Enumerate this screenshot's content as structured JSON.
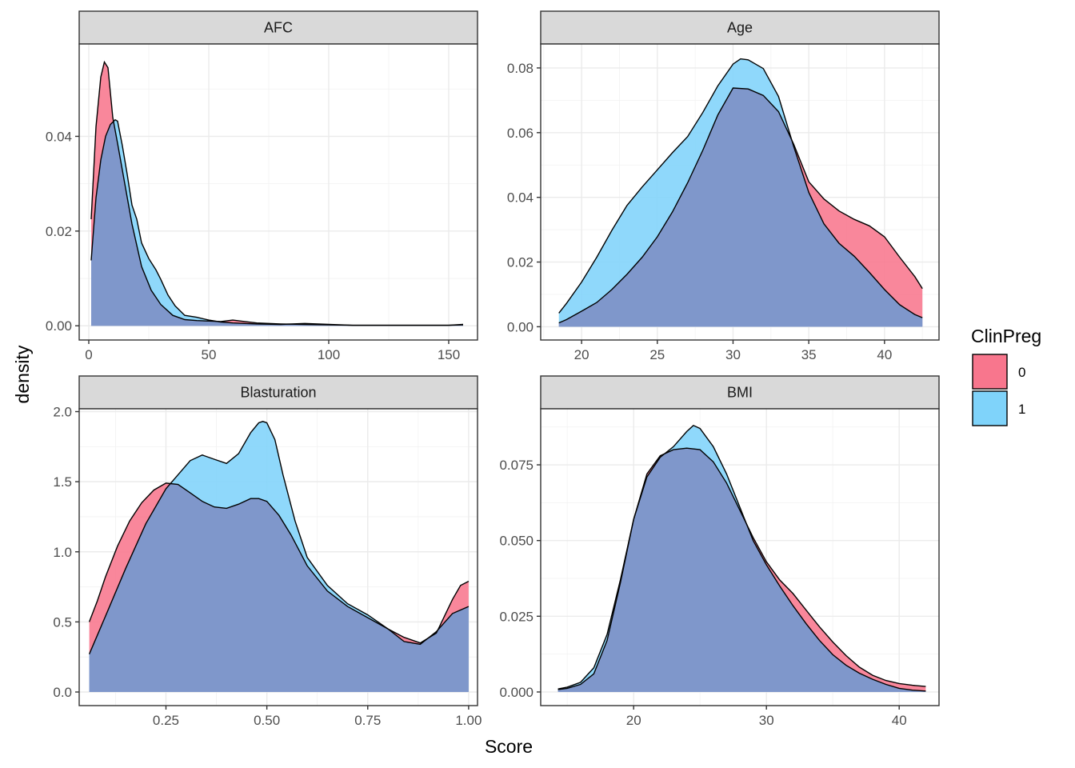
{
  "chart_data": {
    "type": "area",
    "subtype": "faceted-density",
    "xlabel": "Score",
    "ylabel": "density",
    "legend": {
      "title": "ClinPreg",
      "placement": "right",
      "entries": [
        {
          "label": "0",
          "color": "#F8768D"
        },
        {
          "label": "1",
          "color": "#7FD3FA"
        }
      ]
    },
    "overlap_color": "#7F97CB",
    "grid": true,
    "panels": [
      {
        "title": "AFC",
        "xlim": [
          -4,
          162
        ],
        "ylim": [
          -0.003,
          0.0595
        ],
        "xticks": [
          0,
          50,
          100,
          150
        ],
        "xtick_labels": [
          "0",
          "50",
          "100",
          "150"
        ],
        "yticks": [
          0,
          0.02,
          0.04
        ],
        "ytick_labels": [
          "0.00",
          "0.02",
          "0.04"
        ],
        "series": [
          {
            "name": "0",
            "x": [
              1,
              3,
              5,
              6.5,
              8,
              10,
              12,
              15,
              18,
              22,
              26,
              30,
              35,
              40,
              45,
              50,
              55,
              60,
              65,
              70,
              80,
              90,
              100,
              110,
              130,
              150,
              156
            ],
            "y": [
              0.0225,
              0.042,
              0.0525,
              0.0557,
              0.0545,
              0.044,
              0.0385,
              0.03,
              0.0215,
              0.0125,
              0.0075,
              0.0045,
              0.0022,
              0.0013,
              0.0011,
              0.001,
              0.0009,
              0.0012,
              0.0009,
              0.0006,
              0.0004,
              0.0003,
              0.0002,
              0.0001,
              0.0001,
              0.0001,
              0.0002
            ]
          },
          {
            "name": "1",
            "x": [
              1,
              3,
              5,
              7,
              9,
              11,
              12,
              14,
              16,
              18,
              20,
              22,
              25,
              28,
              30,
              33,
              36,
              40,
              45,
              50,
              55,
              60,
              70,
              80,
              90,
              100,
              110,
              130,
              150,
              156
            ],
            "y": [
              0.0138,
              0.027,
              0.035,
              0.04,
              0.0425,
              0.0435,
              0.0432,
              0.038,
              0.032,
              0.0255,
              0.0225,
              0.0175,
              0.0142,
              0.0118,
              0.0098,
              0.0065,
              0.0042,
              0.0022,
              0.0018,
              0.0012,
              0.0008,
              0.0006,
              0.0004,
              0.0003,
              0.0005,
              0.0003,
              0.0001,
              0.0001,
              0.0001,
              0.0003
            ]
          }
        ]
      },
      {
        "title": "Age",
        "xlim": [
          17.3,
          43.6
        ],
        "ylim": [
          -0.0041,
          0.0874
        ],
        "xticks": [
          20,
          25,
          30,
          35,
          40
        ],
        "xtick_labels": [
          "20",
          "25",
          "30",
          "35",
          "40"
        ],
        "yticks": [
          0,
          0.02,
          0.04,
          0.06,
          0.08
        ],
        "ytick_labels": [
          "0.00",
          "0.02",
          "0.04",
          "0.06",
          "0.08"
        ],
        "series": [
          {
            "name": "0",
            "x": [
              18.5,
              19,
              20,
              21,
              22,
              23,
              24,
              25,
              26,
              27,
              28,
              29,
              30,
              31,
              32,
              33,
              34,
              35,
              36,
              37,
              38,
              39,
              40,
              41,
              42,
              42.5
            ],
            "y": [
              0.0012,
              0.0022,
              0.0048,
              0.0075,
              0.0115,
              0.0162,
              0.0215,
              0.0278,
              0.0355,
              0.0445,
              0.0545,
              0.0655,
              0.0738,
              0.0735,
              0.0715,
              0.0665,
              0.0565,
              0.0448,
              0.0395,
              0.0358,
              0.0332,
              0.0312,
              0.0278,
              0.0215,
              0.0155,
              0.0118
            ]
          },
          {
            "name": "1",
            "x": [
              18.5,
              19,
              20,
              21,
              22,
              23,
              24,
              25,
              26,
              27,
              28,
              29,
              30,
              30.5,
              31,
              32,
              33,
              34,
              35,
              36,
              37,
              38,
              39,
              40,
              41,
              42,
              42.5
            ],
            "y": [
              0.0042,
              0.0072,
              0.0138,
              0.0215,
              0.0298,
              0.0375,
              0.0432,
              0.0485,
              0.0538,
              0.0588,
              0.0662,
              0.0745,
              0.0812,
              0.0828,
              0.0825,
              0.0798,
              0.0712,
              0.0558,
              0.0415,
              0.0318,
              0.0258,
              0.0218,
              0.0168,
              0.0115,
              0.0068,
              0.0038,
              0.0028
            ]
          }
        ]
      },
      {
        "title": "Blasturation",
        "xlim": [
          0.035,
          1.022
        ],
        "ylim": [
          -0.097,
          2.02
        ],
        "xticks": [
          0.25,
          0.5,
          0.75,
          1.0
        ],
        "xtick_labels": [
          "0.25",
          "0.50",
          "0.75",
          "1.00"
        ],
        "yticks": [
          0,
          0.5,
          1.0,
          1.5,
          2.0
        ],
        "ytick_labels": [
          "0.0",
          "0.5",
          "1.0",
          "1.5",
          "2.0"
        ],
        "series": [
          {
            "name": "0",
            "x": [
              0.06,
              0.08,
              0.1,
              0.13,
              0.16,
              0.19,
              0.22,
              0.25,
              0.28,
              0.31,
              0.34,
              0.37,
              0.4,
              0.43,
              0.46,
              0.48,
              0.5,
              0.53,
              0.56,
              0.6,
              0.65,
              0.7,
              0.75,
              0.8,
              0.84,
              0.88,
              0.92,
              0.96,
              0.98,
              1.0
            ],
            "y": [
              0.5,
              0.65,
              0.82,
              1.04,
              1.22,
              1.35,
              1.44,
              1.49,
              1.48,
              1.42,
              1.36,
              1.32,
              1.31,
              1.34,
              1.38,
              1.38,
              1.36,
              1.26,
              1.12,
              0.9,
              0.72,
              0.61,
              0.53,
              0.45,
              0.39,
              0.35,
              0.42,
              0.66,
              0.76,
              0.79
            ]
          },
          {
            "name": "1",
            "x": [
              0.06,
              0.1,
              0.15,
              0.2,
              0.25,
              0.28,
              0.31,
              0.34,
              0.37,
              0.4,
              0.43,
              0.46,
              0.48,
              0.49,
              0.5,
              0.52,
              0.54,
              0.57,
              0.6,
              0.65,
              0.7,
              0.75,
              0.8,
              0.84,
              0.88,
              0.92,
              0.96,
              1.0
            ],
            "y": [
              0.27,
              0.54,
              0.88,
              1.2,
              1.45,
              1.55,
              1.65,
              1.69,
              1.66,
              1.63,
              1.7,
              1.85,
              1.92,
              1.93,
              1.92,
              1.8,
              1.55,
              1.22,
              0.96,
              0.76,
              0.63,
              0.55,
              0.45,
              0.36,
              0.34,
              0.43,
              0.56,
              0.61
            ]
          }
        ]
      },
      {
        "title": "BMI",
        "xlim": [
          13.0,
          43.0
        ],
        "ylim": [
          -0.0045,
          0.0935
        ],
        "xticks": [
          20,
          30,
          40
        ],
        "xtick_labels": [
          "20",
          "30",
          "40"
        ],
        "yticks": [
          0,
          0.025,
          0.05,
          0.075
        ],
        "ytick_labels": [
          "0.000",
          "0.025",
          "0.050",
          "0.075"
        ],
        "series": [
          {
            "name": "0",
            "x": [
              14.3,
              15,
              16,
              17,
              18,
              19,
              20,
              21,
              22,
              23,
              24,
              25,
              26,
              27,
              28,
              29,
              30,
              31,
              32,
              33,
              34,
              35,
              36,
              37,
              38,
              39,
              40,
              41,
              42
            ],
            "y": [
              0.0008,
              0.0012,
              0.0025,
              0.006,
              0.017,
              0.036,
              0.057,
              0.072,
              0.078,
              0.08,
              0.0805,
              0.08,
              0.076,
              0.069,
              0.06,
              0.051,
              0.043,
              0.037,
              0.0325,
              0.027,
              0.0215,
              0.0165,
              0.012,
              0.0082,
              0.0055,
              0.0038,
              0.0028,
              0.0022,
              0.0018
            ]
          },
          {
            "name": "1",
            "x": [
              14.3,
              15,
              16,
              17,
              18,
              19,
              20,
              21,
              22,
              23,
              24,
              24.5,
              25,
              26,
              27,
              28,
              29,
              30,
              31,
              32,
              33,
              34,
              35,
              36,
              37,
              38,
              39,
              40,
              41,
              42
            ],
            "y": [
              0.001,
              0.0016,
              0.0032,
              0.008,
              0.019,
              0.037,
              0.057,
              0.071,
              0.0775,
              0.081,
              0.086,
              0.088,
              0.087,
              0.081,
              0.072,
              0.061,
              0.05,
              0.042,
              0.035,
              0.0285,
              0.0225,
              0.017,
              0.0123,
              0.0088,
              0.0062,
              0.0042,
              0.0025,
              0.0012,
              0.0006,
              0.0003
            ]
          }
        ]
      }
    ]
  }
}
